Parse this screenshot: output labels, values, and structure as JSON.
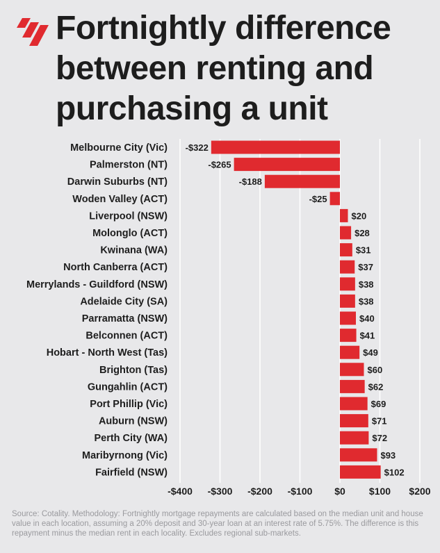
{
  "title": "Fortnightly difference between renting and purchasing a unit",
  "logo_icon": "sbs-news-stripes-logo",
  "accent_color": "#e02a2f",
  "source_note": "Source: Cotality. Methodology: Fortnightly mortgage repayments are calculated based on the median unit and house value in each location, assuming a 20% deposit and 30-year loan at an interest rate of 5.75%. The difference is this repayment minus the median rent in each locality. Excludes regional sub-markets.",
  "chart_data": {
    "type": "bar",
    "orientation": "horizontal",
    "title": "Fortnightly difference between renting and purchasing a unit",
    "xlabel": "",
    "ylabel": "",
    "xlim": [
      -400,
      200
    ],
    "grid": true,
    "bar_color": "#e02a2f",
    "categories": [
      "Melbourne City (Vic)",
      "Palmerston (NT)",
      "Darwin Suburbs (NT)",
      "Woden Valley (ACT)",
      "Liverpool (NSW)",
      "Molonglo (ACT)",
      "Kwinana (WA)",
      "North Canberra (ACT)",
      "Merrylands - Guildford (NSW)",
      "Adelaide City (SA)",
      "Parramatta (NSW)",
      "Belconnen (ACT)",
      "Hobart - North West (Tas)",
      "Brighton (Tas)",
      "Gungahlin (ACT)",
      "Port Phillip (Vic)",
      "Auburn (NSW)",
      "Perth City (WA)",
      "Maribyrnong (Vic)",
      "Fairfield (NSW)"
    ],
    "values": [
      -322,
      -265,
      -188,
      -25,
      20,
      28,
      31,
      37,
      38,
      38,
      40,
      41,
      49,
      60,
      62,
      69,
      71,
      72,
      93,
      102
    ],
    "value_labels": [
      "-$322",
      "-$265",
      "-$188",
      "-$25",
      "$20",
      "$28",
      "$31",
      "$37",
      "$38",
      "$38",
      "$40",
      "$41",
      "$49",
      "$60",
      "$62",
      "$69",
      "$71",
      "$72",
      "$93",
      "$102"
    ],
    "x_ticks": [
      -400,
      -300,
      -200,
      -100,
      0,
      100,
      200
    ],
    "x_tick_labels": [
      "-$400",
      "-$300",
      "-$200",
      "-$100",
      "$0",
      "$100",
      "$200"
    ]
  }
}
